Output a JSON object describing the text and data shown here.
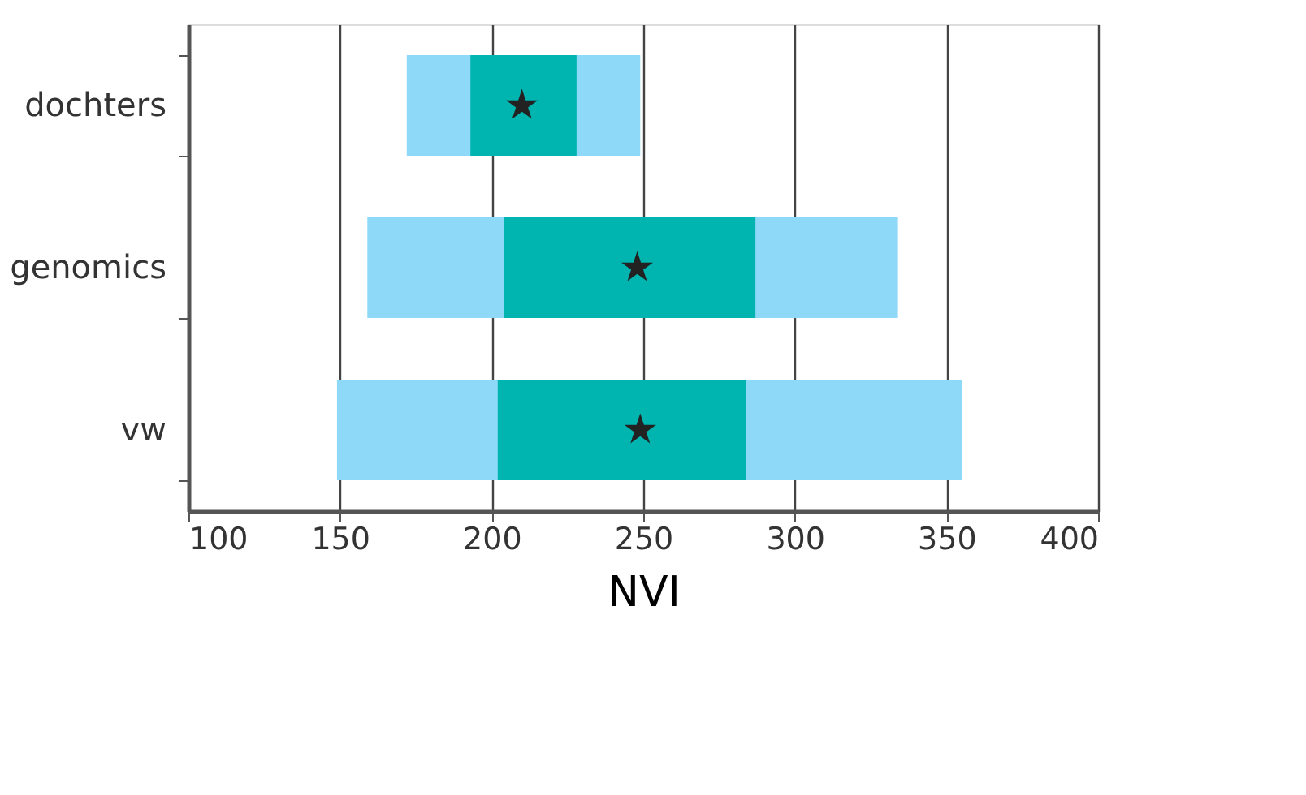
{
  "chart_data": {
    "type": "bar",
    "orientation": "horizontal",
    "xlabel": "NVI",
    "categories": [
      "dochters",
      "genomics",
      "vw"
    ],
    "series": [
      {
        "color": "#8ed8f8",
        "base": [
          172,
          159,
          149
        ],
        "values": [
          77,
          175,
          206
        ]
      },
      {
        "color": "#00b5b0",
        "base": [
          193,
          204,
          202
        ],
        "values": [
          35,
          83,
          82
        ]
      },
      {
        "type": "scatter",
        "color": "#222222",
        "x": [
          "dochters",
          "genomics",
          "vw"
        ],
        "values": [
          210,
          248,
          249
        ]
      }
    ],
    "xlim": [
      100,
      400
    ],
    "xticks": [
      100,
      150,
      200,
      250,
      300,
      350,
      400
    ],
    "grid": "x",
    "marker": "star"
  }
}
